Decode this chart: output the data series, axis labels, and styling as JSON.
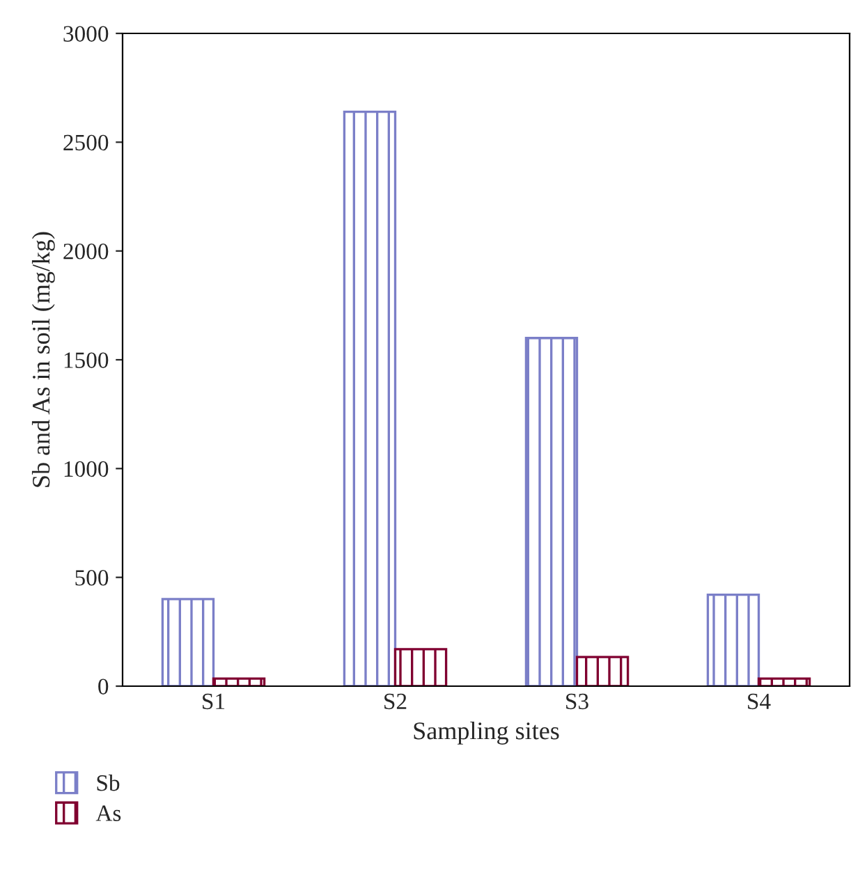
{
  "chart_data": {
    "type": "bar",
    "xlabel": "Sampling sites",
    "ylabel": "Sb and As in soil (mg/kg)",
    "categories": [
      "S1",
      "S2",
      "S3",
      "S4"
    ],
    "series": [
      {
        "name": "Sb",
        "color": "#7b7fc8",
        "values": [
          400,
          2640,
          1600,
          420
        ]
      },
      {
        "name": "As",
        "color": "#800030",
        "values": [
          35,
          170,
          134,
          35
        ]
      }
    ],
    "ylim": [
      0,
      3000
    ],
    "yticks": [
      0,
      500,
      1000,
      1500,
      2000,
      2500,
      3000
    ],
    "grid": false,
    "legend": "bottom left"
  }
}
